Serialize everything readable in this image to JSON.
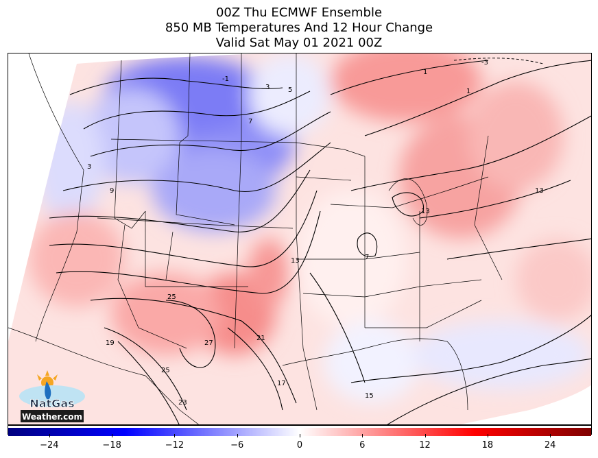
{
  "title": {
    "line1": "00Z Thu ECMWF Ensemble",
    "line2": "850 MB Temperatures And 12 Hour Change",
    "line3": "Valid Sat May 01 2021 00Z"
  },
  "colorbar": {
    "min": -28,
    "max": 28,
    "ticks": [
      -24,
      -18,
      -12,
      -6,
      0,
      6,
      12,
      18,
      24
    ],
    "tick_labels": [
      "−24",
      "−18",
      "−12",
      "−6",
      "0",
      "6",
      "12",
      "18",
      "24"
    ],
    "colors": {
      "cold": "#00007f",
      "mid_cold": "#0000ff",
      "neutral": "#ffffff",
      "mid_warm": "#ff0000",
      "warm": "#7f0000"
    }
  },
  "contour_labels": [
    "-3",
    "1",
    "-1",
    "3",
    "5",
    "7",
    "9",
    "3",
    "13",
    "7",
    "13",
    "25",
    "27",
    "21",
    "19",
    "25",
    "23",
    "17",
    "15",
    "13",
    "1"
  ],
  "logo": {
    "line1": "NatGas",
    "line2": "Weather.com"
  }
}
